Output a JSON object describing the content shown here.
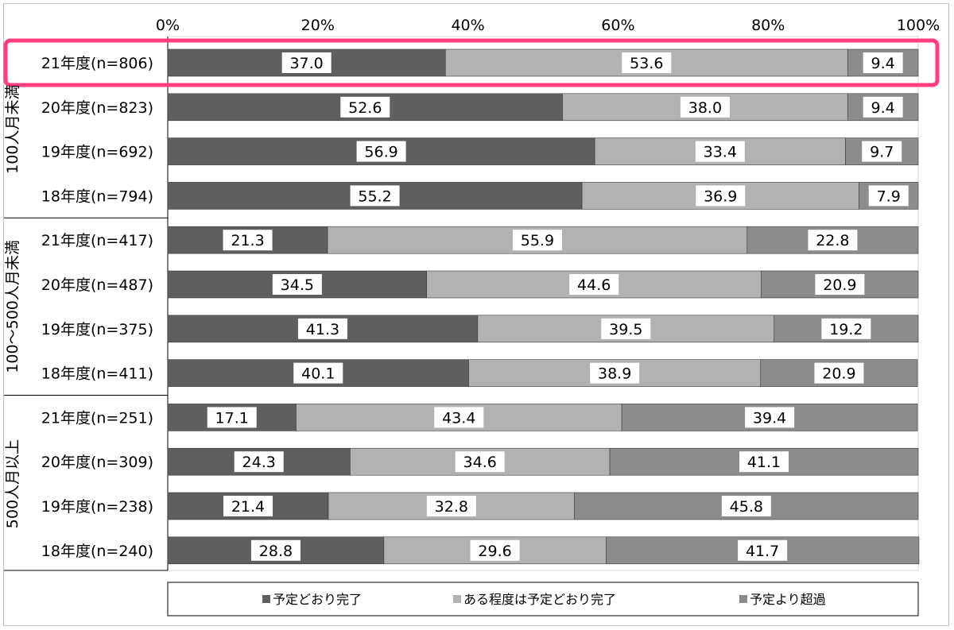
{
  "chart_data": {
    "type": "bar",
    "orientation": "horizontal",
    "stacked": true,
    "percent_axis": true,
    "xlim": [
      0,
      100
    ],
    "x_ticks": [
      "0%",
      "20%",
      "40%",
      "60%",
      "80%",
      "100%"
    ],
    "legend_position": "bottom",
    "highlighted_category": "21年度(n=806)",
    "series": [
      {
        "name": "予定どおり完了",
        "color": "#5f5f5f"
      },
      {
        "name": "ある程度は予定どおり完了",
        "color": "#b2b2b2"
      },
      {
        "name": "予定より超過",
        "color": "#8c8c8c"
      }
    ],
    "groups": [
      {
        "label": "100人月未満",
        "rows": [
          {
            "label": "21年度(n=806)",
            "values": [
              37.0,
              53.6,
              9.4
            ]
          },
          {
            "label": "20年度(n=823)",
            "values": [
              52.6,
              38.0,
              9.4
            ]
          },
          {
            "label": "19年度(n=692)",
            "values": [
              56.9,
              33.4,
              9.7
            ]
          },
          {
            "label": "18年度(n=794)",
            "values": [
              55.2,
              36.9,
              7.9
            ]
          }
        ]
      },
      {
        "label": "100〜500人月未満",
        "rows": [
          {
            "label": "21年度(n=417)",
            "values": [
              21.3,
              55.9,
              22.8
            ]
          },
          {
            "label": "20年度(n=487)",
            "values": [
              34.5,
              44.6,
              20.9
            ]
          },
          {
            "label": "19年度(n=375)",
            "values": [
              41.3,
              39.5,
              19.2
            ]
          },
          {
            "label": "18年度(n=411)",
            "values": [
              40.1,
              38.9,
              20.9
            ]
          }
        ]
      },
      {
        "label": "500人月以上",
        "rows": [
          {
            "label": "21年度(n=251)",
            "values": [
              17.1,
              43.4,
              39.4
            ]
          },
          {
            "label": "20年度(n=309)",
            "values": [
              24.3,
              34.6,
              41.1
            ]
          },
          {
            "label": "19年度(n=238)",
            "values": [
              21.4,
              32.8,
              45.8
            ]
          },
          {
            "label": "18年度(n=240)",
            "values": [
              28.8,
              29.6,
              41.7
            ]
          }
        ]
      }
    ],
    "highlight_color": "#ff3d7f"
  }
}
